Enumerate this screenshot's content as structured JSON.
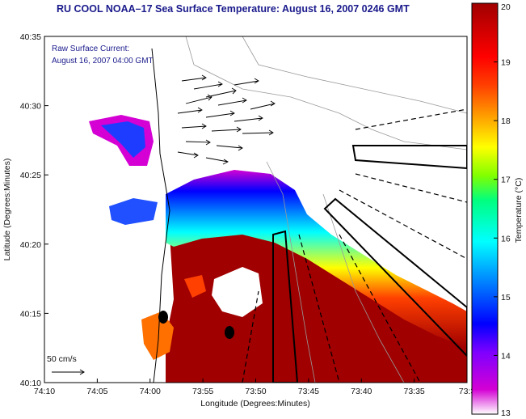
{
  "chart_data": {
    "type": "heatmap",
    "title": "RU COOL  NOAA–17  Sea Surface Temperature:  August 16, 2007 0246 GMT",
    "xlabel": "Longitude (Degrees:Minutes)",
    "ylabel": "Latitude (Degrees:Minutes)",
    "x_ticks": [
      "74:10",
      "74:05",
      "74:00",
      "73:55",
      "73:50",
      "73:45",
      "73:40",
      "73:35",
      "73:3"
    ],
    "y_ticks": [
      "40:35",
      "40:30",
      "40:25",
      "40:20",
      "40:15",
      "40:10"
    ],
    "colorbar": {
      "label": "Temperature (°C)",
      "ticks": [
        "20",
        "19",
        "18",
        "17",
        "16",
        "15",
        "14",
        "13"
      ],
      "range": [
        13,
        20
      ],
      "colors": [
        "#d400d4",
        "#7f00ff",
        "#0000ff",
        "#0080ff",
        "#00ffff",
        "#00ff80",
        "#80ff00",
        "#ffff00",
        "#ffa500",
        "#ff4000",
        "#ff0000",
        "#a00000"
      ]
    },
    "annotations": {
      "current_label_1": "Raw Surface Current:",
      "current_label_2": "August 16, 2007 04:00 GMT",
      "scale_label": "50 cm/s"
    },
    "grid": false
  }
}
